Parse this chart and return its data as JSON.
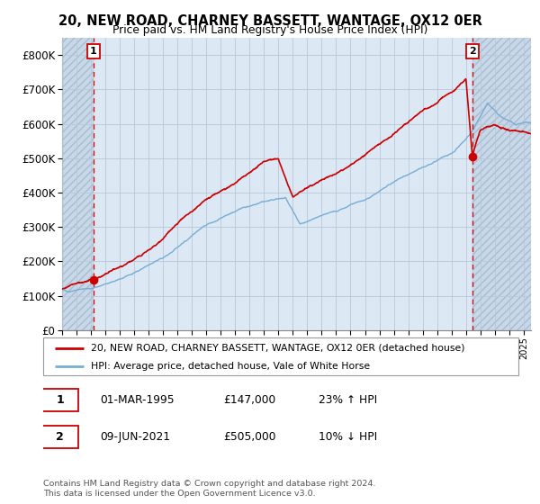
{
  "title": "20, NEW ROAD, CHARNEY BASSETT, WANTAGE, OX12 0ER",
  "subtitle": "Price paid vs. HM Land Registry's House Price Index (HPI)",
  "ylim": [
    0,
    850000
  ],
  "yticks": [
    0,
    100000,
    200000,
    300000,
    400000,
    500000,
    600000,
    700000,
    800000
  ],
  "ytick_labels": [
    "£0",
    "£100K",
    "£200K",
    "£300K",
    "£400K",
    "£500K",
    "£600K",
    "£700K",
    "£800K"
  ],
  "legend_line1": "20, NEW ROAD, CHARNEY BASSETT, WANTAGE, OX12 0ER (detached house)",
  "legend_line2": "HPI: Average price, detached house, Vale of White Horse",
  "annotation1_date": "01-MAR-1995",
  "annotation1_price": "£147,000",
  "annotation1_hpi": "23% ↑ HPI",
  "annotation2_date": "09-JUN-2021",
  "annotation2_price": "£505,000",
  "annotation2_hpi": "10% ↓ HPI",
  "red_color": "#cc0000",
  "blue_color": "#7aadd4",
  "grid_color": "#b8c8dc",
  "bg_color": "#dce8f4",
  "hatch_color": "#c0d0e0",
  "purchase1_x": 1995.17,
  "purchase2_x": 2021.44,
  "xlim": [
    1993,
    2025.5
  ],
  "footer": "Contains HM Land Registry data © Crown copyright and database right 2024.\nThis data is licensed under the Open Government Licence v3.0."
}
